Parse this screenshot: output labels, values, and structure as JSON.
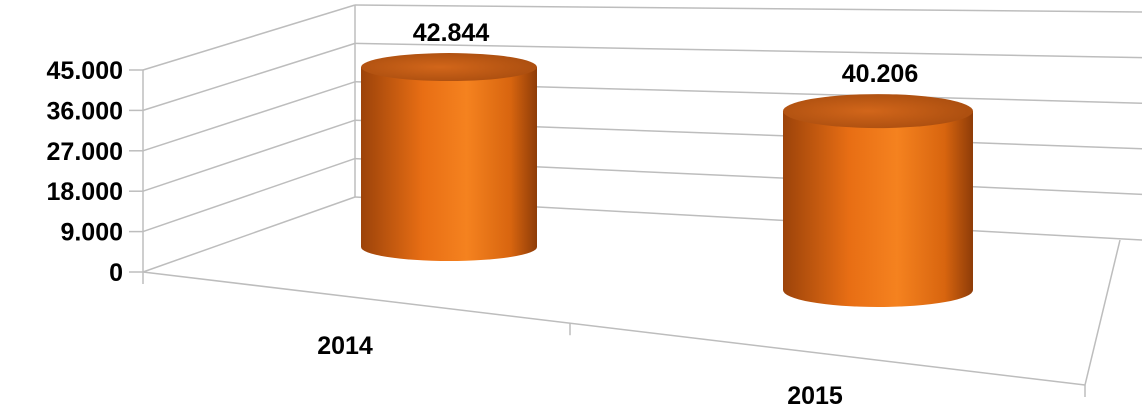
{
  "chart_data": {
    "type": "bar",
    "style": "3d-cylinder",
    "categories": [
      "2014",
      "2015"
    ],
    "values": [
      42844,
      40206
    ],
    "data_labels": [
      "42.844",
      "40.206"
    ],
    "y_ticks": [
      0,
      9000,
      18000,
      27000,
      36000,
      45000
    ],
    "y_tick_labels": [
      "0",
      "9.000",
      "18.000",
      "27.000",
      "36.000",
      "45.000"
    ],
    "ylim": [
      0,
      45000
    ],
    "grid": true,
    "legend": "none",
    "title": "",
    "xlabel": "",
    "ylabel": "",
    "colors": {
      "bar": "#f07a1a",
      "bar_dark": "#a94a0c",
      "bar_top": "#c25c12",
      "grid": "#bdbdbd"
    }
  }
}
